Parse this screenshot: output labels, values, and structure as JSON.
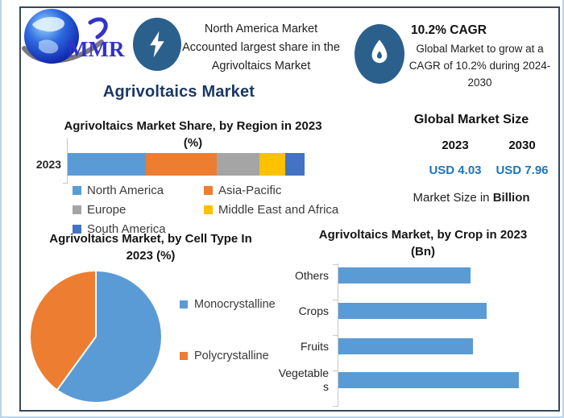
{
  "brand": {
    "name": "MMR"
  },
  "badges": [
    {
      "icon": "lightning",
      "lines": [
        "North America Market",
        "Accounted largest share in the",
        "Agrivoltaics Market"
      ]
    },
    {
      "icon": "flame",
      "title": "10.2% CAGR",
      "lines": [
        "Global Market to grow at a",
        "CAGR of 10.2% during 2024-",
        "2030"
      ]
    }
  ],
  "page_title": "Agrivoltaics Market",
  "market_size": {
    "title": "Global Market Size",
    "columns": [
      {
        "year": "2023",
        "value": "USD 4.03"
      },
      {
        "year": "2030",
        "value": "USD 7.96"
      }
    ],
    "footnote_prefix": "Market Size in ",
    "footnote_bold": "Billion",
    "value_color": "#1B75BC"
  },
  "chart_data": [
    {
      "type": "bar",
      "variant": "stacked-horizontal",
      "title_lines": [
        "Agrivoltaics Market Share, by Region in 2023",
        "(%)"
      ],
      "categories": [
        "2023"
      ],
      "series": [
        {
          "name": "North America",
          "values": [
            33
          ],
          "color": "#5B9BD5"
        },
        {
          "name": "Asia-Pacific",
          "values": [
            30
          ],
          "color": "#ED7D31"
        },
        {
          "name": "Europe",
          "values": [
            18
          ],
          "color": "#A5A5A5"
        },
        {
          "name": "Middle East and Africa",
          "values": [
            11
          ],
          "color": "#FFC000"
        },
        {
          "name": "South America",
          "values": [
            8
          ],
          "color": "#4472C4"
        }
      ],
      "xlim": [
        0,
        100
      ],
      "legend_position": "bottom"
    },
    {
      "type": "pie",
      "title_lines": [
        "Agrivoltaics Market, by Cell Type In",
        "2023 (%)"
      ],
      "slices": [
        {
          "label": "Monocrystalline",
          "value": 60,
          "color": "#5B9BD5"
        },
        {
          "label": "Polycrystalline",
          "value": 40,
          "color": "#ED7D31"
        }
      ],
      "start_angle": 0,
      "legend_position": "right"
    },
    {
      "type": "bar",
      "variant": "horizontal",
      "title_lines": [
        "Agrivoltaics Market, by Crop in 2023",
        "(Bn)"
      ],
      "categories": [
        "Others",
        "Crops",
        "Fruits",
        "Vegetables"
      ],
      "values": [
        0.89,
        1.0,
        0.91,
        1.22
      ],
      "color": "#5B9BD5",
      "xlim": [
        0,
        1.4
      ],
      "grid": false
    }
  ]
}
